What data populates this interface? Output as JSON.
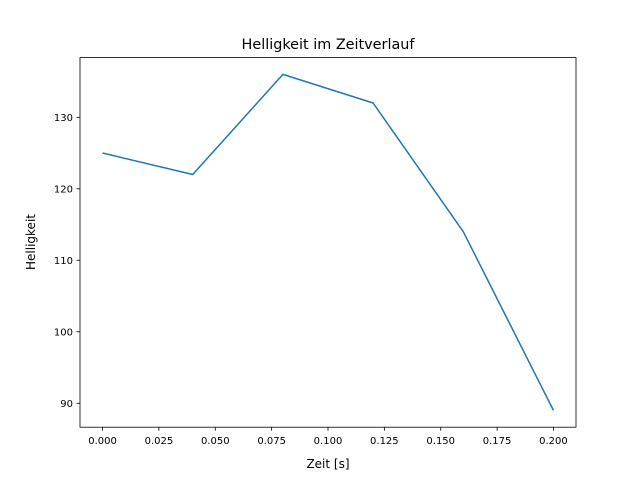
{
  "chart_data": {
    "type": "line",
    "title": "Helligkeit im Zeitverlauf",
    "xlabel": "Zeit [s]",
    "ylabel": "Helligkeit",
    "xlim": [
      -0.01,
      0.21
    ],
    "ylim": [
      86.65,
      138.35
    ],
    "grid": false,
    "x_ticks": [
      "0.000",
      "0.025",
      "0.050",
      "0.075",
      "0.100",
      "0.125",
      "0.150",
      "0.175",
      "0.200"
    ],
    "x_tick_values": [
      0,
      0.025,
      0.05,
      0.075,
      0.1,
      0.125,
      0.15,
      0.175,
      0.2
    ],
    "y_ticks": [
      "90",
      "100",
      "110",
      "120",
      "130"
    ],
    "y_tick_values": [
      90,
      100,
      110,
      120,
      130
    ],
    "series": [
      {
        "name": "Helligkeit",
        "color": "#1f77b4",
        "x": [
          0,
          0.04,
          0.08,
          0.12,
          0.16,
          0.2
        ],
        "y": [
          125,
          122,
          136,
          132,
          114,
          89
        ]
      }
    ]
  }
}
